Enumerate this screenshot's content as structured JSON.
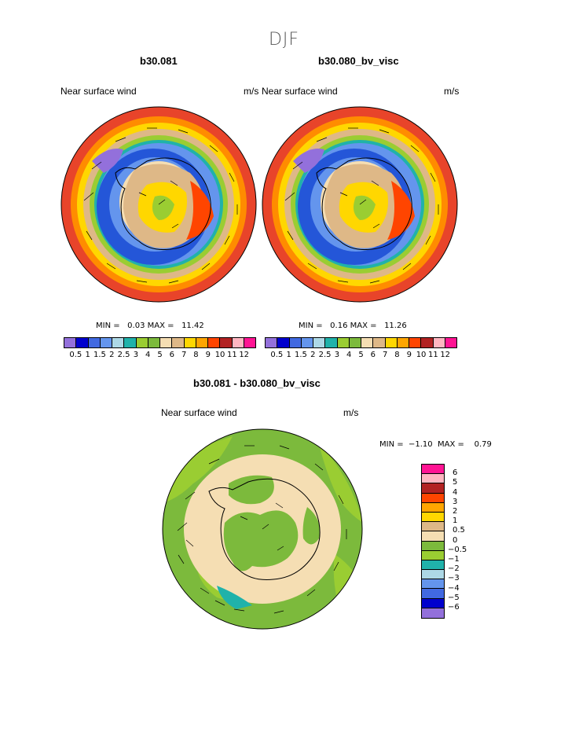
{
  "title": "DJF",
  "panels": [
    {
      "case": "b30.081",
      "variable": "Near surface wind",
      "units": "m/s",
      "min_label": "MIN =",
      "min": "0.03",
      "max_label": "MAX =",
      "max": "11.42"
    },
    {
      "case": "b30.080_bv_visc",
      "variable": "Near surface wind",
      "units": "m/s",
      "min_label": "MIN =",
      "min": "0.16",
      "max_label": "MAX =",
      "max": "11.26"
    },
    {
      "case": "b30.081 - b30.080_bv_visc",
      "variable": "Near surface wind",
      "units": "m/s",
      "min_label": "MIN =",
      "min": "−1.10",
      "max_label": "MAX =",
      "max": "0.79"
    }
  ],
  "chart_data": [
    {
      "type": "heatmap",
      "colorbar_labels": [
        "0.5",
        "1",
        "1.5",
        "2",
        "2.5",
        "3",
        "4",
        "5",
        "6",
        "7",
        "8",
        "9",
        "10",
        "11",
        "12"
      ],
      "colorbar_colors": [
        "#9370db",
        "#0000cd",
        "#4169e1",
        "#6495ed",
        "#add8e6",
        "#20b2aa",
        "#9acd32",
        "#7cba3c",
        "#f5deb3",
        "#deb887",
        "#ffd700",
        "#ffa500",
        "#ff4500",
        "#b22222",
        "#ffb6c1",
        "#ff1493"
      ]
    },
    {
      "type": "heatmap",
      "colorbar_labels": [
        "-6",
        "-5",
        "-4",
        "-3",
        "-2",
        "-1",
        "-0.5",
        "0",
        "0.5",
        "1",
        "2",
        "3",
        "4",
        "5",
        "6"
      ],
      "colorbar_colors": [
        "#9370db",
        "#0000cd",
        "#4169e1",
        "#6495ed",
        "#add8e6",
        "#20b2aa",
        "#9acd32",
        "#7cba3c",
        "#f5deb3",
        "#deb887",
        "#ffd700",
        "#ffa500",
        "#ff4500",
        "#b22222",
        "#ffb6c1",
        "#ff1493"
      ]
    }
  ]
}
